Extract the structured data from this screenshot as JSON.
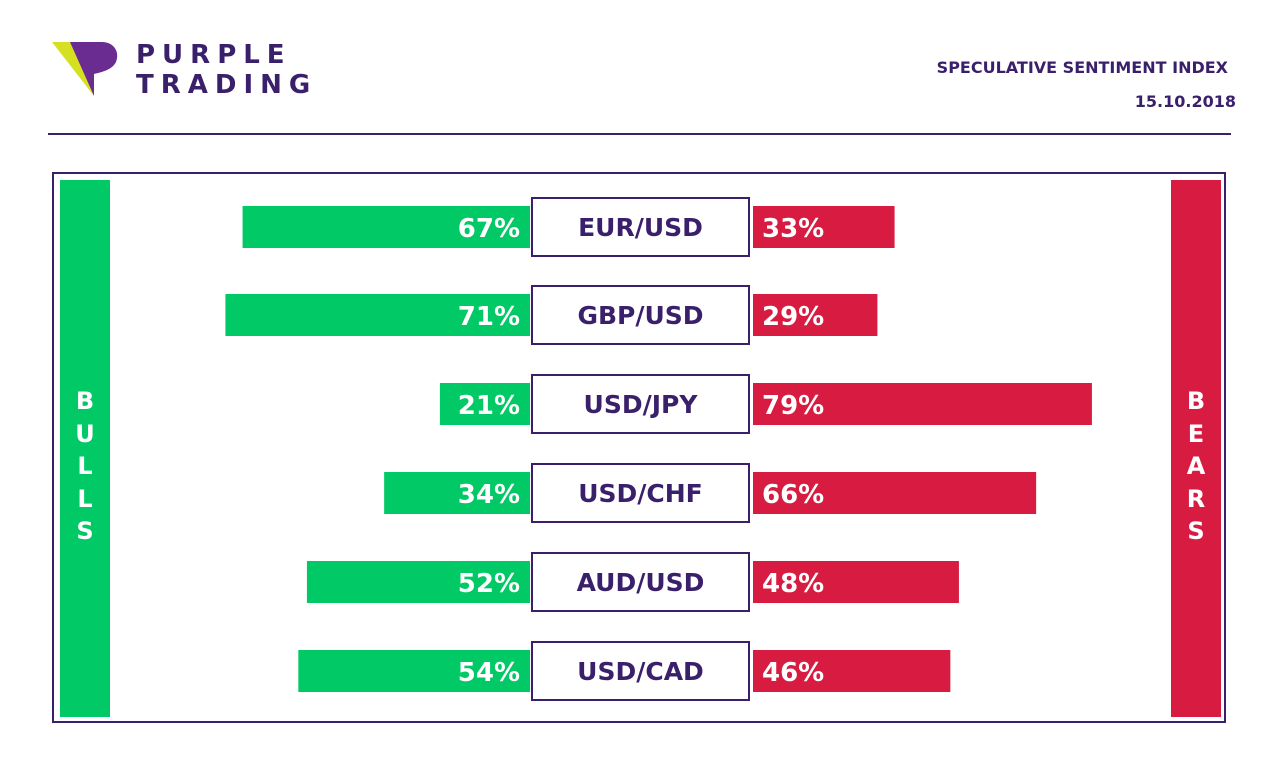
{
  "brand": {
    "line1": "PURPLE",
    "line2": "TRADING"
  },
  "header": {
    "title": "SPECULATIVE SENTIMENT INDEX",
    "date": "15.10.2018"
  },
  "sides": {
    "bulls": "BULLS",
    "bears": "BEARS"
  },
  "colors": {
    "bulls": "#00c966",
    "bears": "#d81b40",
    "purple": "#3a1f6b",
    "logo_lime": "#d4e021"
  },
  "chart_data": {
    "type": "bar",
    "categories": [
      "EUR/USD",
      "GBP/USD",
      "USD/JPY",
      "USD/CHF",
      "AUD/USD",
      "USD/CAD"
    ],
    "series": [
      {
        "name": "BULLS",
        "values": [
          67,
          71,
          21,
          34,
          52,
          54
        ]
      },
      {
        "name": "BEARS",
        "values": [
          33,
          29,
          79,
          66,
          48,
          46
        ]
      }
    ],
    "value_labels": {
      "bulls": [
        "67%",
        "71%",
        "21%",
        "34%",
        "52%",
        "54%"
      ],
      "bears": [
        "33%",
        "29%",
        "79%",
        "66%",
        "48%",
        "46%"
      ]
    }
  }
}
